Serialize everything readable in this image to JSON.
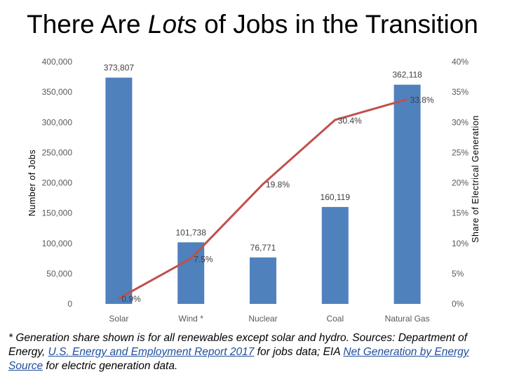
{
  "title": {
    "before": "There Are ",
    "emphasis": "Lots",
    "after": " of Jobs in the Transition"
  },
  "chart_data": {
    "type": "bar",
    "categories": [
      "Solar",
      "Wind *",
      "Nuclear",
      "Coal",
      "Natural Gas"
    ],
    "series": [
      {
        "name": "Number of Jobs",
        "type": "bar",
        "axis": "left",
        "values": [
          373807,
          101738,
          76771,
          160119,
          362118
        ],
        "labels": [
          "373,807",
          "101,738",
          "76,771",
          "160,119",
          "362,118"
        ],
        "color": "#4f81bd"
      },
      {
        "name": "Share of Electrical Generation",
        "type": "line",
        "axis": "right",
        "values": [
          0.9,
          7.5,
          19.8,
          30.4,
          33.8
        ],
        "labels": [
          "0.9%",
          "7.5%",
          "19.8%",
          "30.4%",
          "33.8%"
        ],
        "color": "#c0504d"
      }
    ],
    "ylabel": "Number of Jobs",
    "ylim": [
      0,
      400000
    ],
    "y_ticks": [
      "0",
      "50,000",
      "100,000",
      "150,000",
      "200,000",
      "250,000",
      "300,000",
      "350,000",
      "400,000"
    ],
    "y2label": "Share of Electrical Generation",
    "y2lim": [
      0,
      40
    ],
    "y2_ticks": [
      "0%",
      "5%",
      "10%",
      "15%",
      "20%",
      "25%",
      "30%",
      "35%",
      "40%"
    ],
    "grid": false,
    "legend": "none"
  },
  "footnote": {
    "part1": "* Generation share shown is for all renewables except solar and hydro. Sources: Department of Energy, ",
    "link1": "U.S. Energy and Employment Report 2017",
    "part2": " for jobs data; EIA ",
    "link2": "Net Generation by Energy Source",
    "part3": " for electric generation data."
  }
}
